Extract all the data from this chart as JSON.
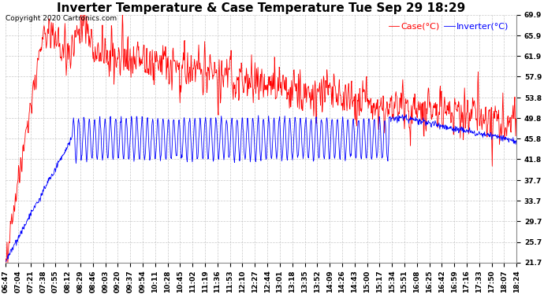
{
  "title": "Inverter Temperature & Case Temperature Tue Sep 29 18:29",
  "copyright": "Copyright 2020 Cartronics.com",
  "legend_case": "Case(°C)",
  "legend_inverter": "Inverter(°C)",
  "case_color": "#ff0000",
  "inverter_color": "#0000ff",
  "background_color": "#ffffff",
  "grid_color": "#bbbbbb",
  "yticks": [
    21.7,
    25.7,
    29.7,
    33.7,
    37.7,
    41.8,
    45.8,
    49.8,
    53.8,
    57.9,
    61.9,
    65.9,
    69.9
  ],
  "ymin": 21.7,
  "ymax": 69.9,
  "xtick_labels": [
    "06:47",
    "07:04",
    "07:21",
    "07:38",
    "07:55",
    "08:12",
    "08:29",
    "08:46",
    "09:03",
    "09:20",
    "09:37",
    "09:54",
    "10:11",
    "10:28",
    "10:45",
    "11:02",
    "11:19",
    "11:36",
    "11:53",
    "12:10",
    "12:27",
    "12:44",
    "13:01",
    "13:18",
    "13:35",
    "13:52",
    "14:09",
    "14:26",
    "14:43",
    "15:00",
    "15:17",
    "15:34",
    "15:51",
    "16:08",
    "16:25",
    "16:42",
    "16:59",
    "17:16",
    "17:33",
    "17:50",
    "18:07",
    "18:24"
  ],
  "title_fontsize": 11,
  "tick_fontsize": 6.5,
  "copyright_fontsize": 6.5,
  "legend_fontsize": 8
}
